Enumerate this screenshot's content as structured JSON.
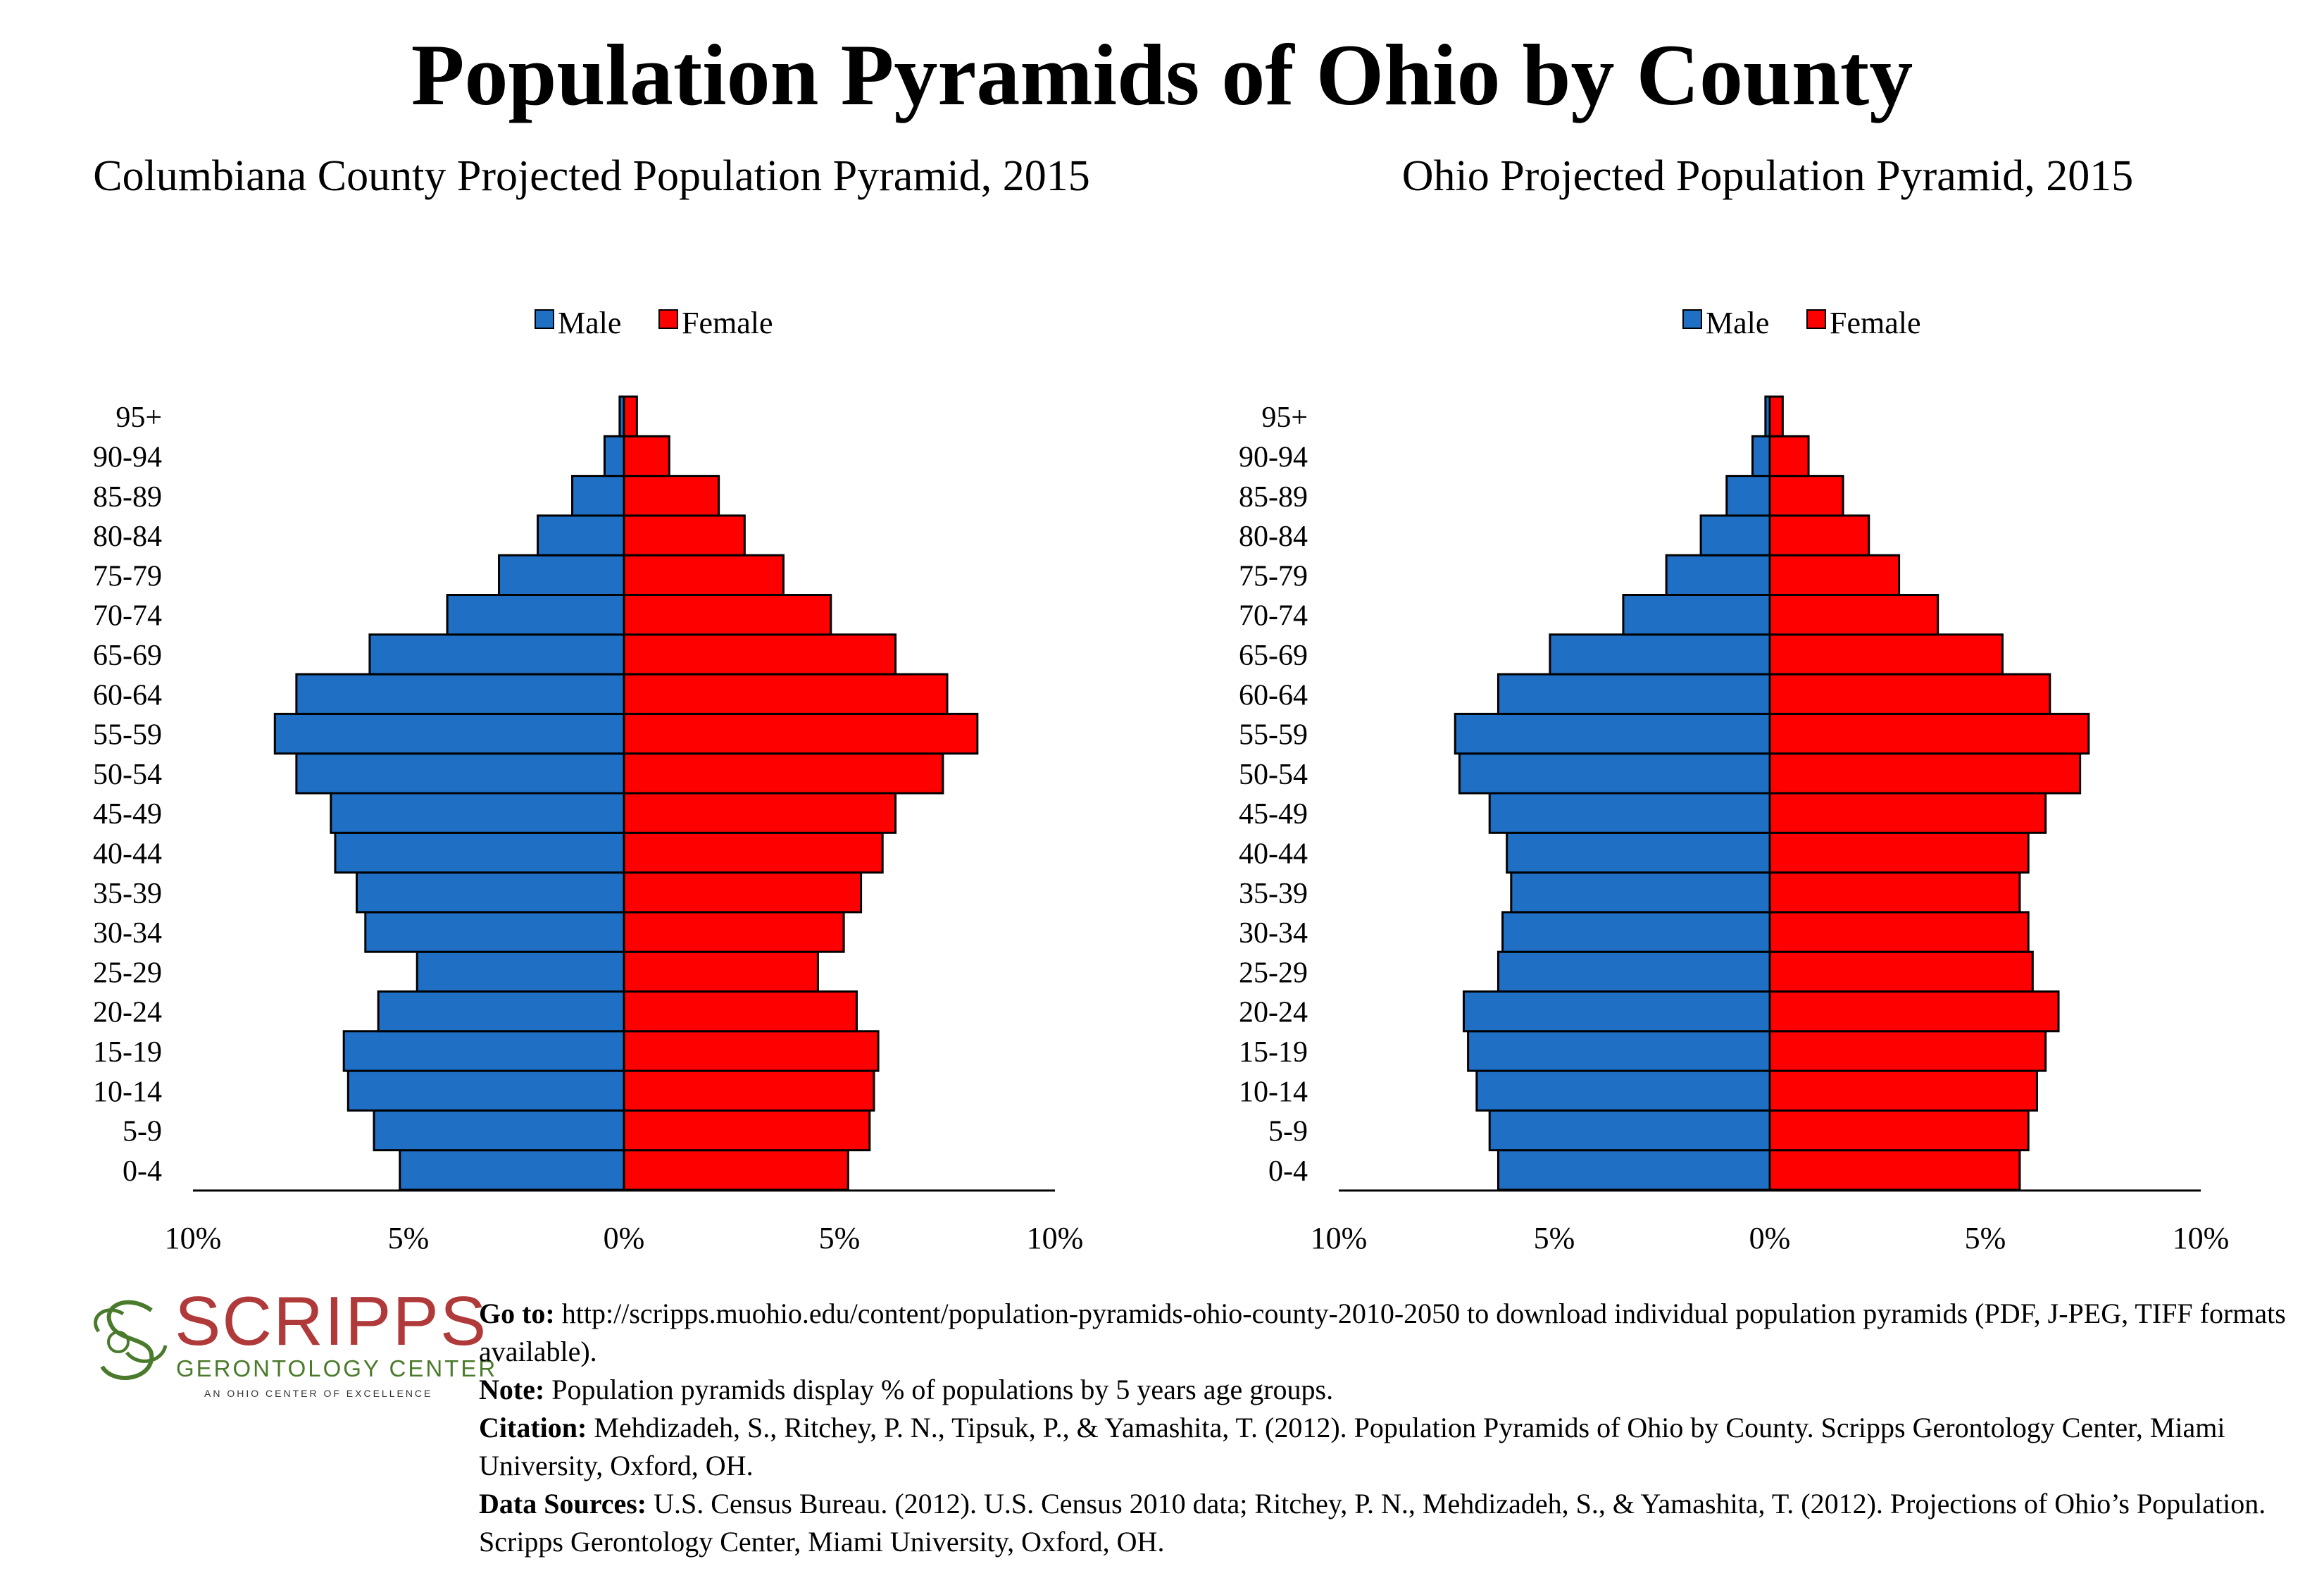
{
  "title": "Population Pyramids of Ohio by County",
  "chart_data": [
    {
      "type": "bar",
      "orientation": "horizontal-pyramid",
      "title": "Columbiana County Projected Population Pyramid, 2015",
      "categories": [
        "0-4",
        "5-9",
        "10-14",
        "15-19",
        "20-24",
        "25-29",
        "30-34",
        "35-39",
        "40-44",
        "45-49",
        "50-54",
        "55-59",
        "60-64",
        "65-69",
        "70-74",
        "75-79",
        "80-84",
        "85-89",
        "90-94",
        "95+"
      ],
      "series": [
        {
          "name": "Male",
          "color": "#1f6fc5",
          "values": [
            5.2,
            5.8,
            6.4,
            6.5,
            5.7,
            4.8,
            6.0,
            6.2,
            6.7,
            6.8,
            7.6,
            8.1,
            7.6,
            5.9,
            4.1,
            2.9,
            2.0,
            1.2,
            0.45,
            0.1
          ]
        },
        {
          "name": "Female",
          "color": "#ff0000",
          "values": [
            5.2,
            5.7,
            5.8,
            5.9,
            5.4,
            4.5,
            5.1,
            5.5,
            6.0,
            6.3,
            7.4,
            8.2,
            7.5,
            6.3,
            4.8,
            3.7,
            2.8,
            2.2,
            1.05,
            0.3
          ]
        }
      ],
      "xticks": [
        "10%",
        "5%",
        "0%",
        "5%",
        "10%"
      ],
      "xlim": [
        -10,
        10
      ],
      "legend": "top-center"
    },
    {
      "type": "bar",
      "orientation": "horizontal-pyramid",
      "title": "Ohio Projected Population Pyramid, 2015",
      "categories": [
        "0-4",
        "5-9",
        "10-14",
        "15-19",
        "20-24",
        "25-29",
        "30-34",
        "35-39",
        "40-44",
        "45-49",
        "50-54",
        "55-59",
        "60-64",
        "65-69",
        "70-74",
        "75-79",
        "80-84",
        "85-89",
        "90-94",
        "95+"
      ],
      "series": [
        {
          "name": "Male",
          "color": "#1f6fc5",
          "values": [
            6.3,
            6.5,
            6.8,
            7.0,
            7.1,
            6.3,
            6.2,
            6.0,
            6.1,
            6.5,
            7.2,
            7.3,
            6.3,
            5.1,
            3.4,
            2.4,
            1.6,
            1.0,
            0.4,
            0.1
          ]
        },
        {
          "name": "Female",
          "color": "#ff0000",
          "values": [
            5.8,
            6.0,
            6.2,
            6.4,
            6.7,
            6.1,
            6.0,
            5.8,
            6.0,
            6.4,
            7.2,
            7.4,
            6.5,
            5.4,
            3.9,
            3.0,
            2.3,
            1.7,
            0.9,
            0.3
          ]
        }
      ],
      "xticks": [
        "10%",
        "5%",
        "0%",
        "5%",
        "10%"
      ],
      "xlim": [
        -10,
        10
      ],
      "legend": "top-center"
    }
  ],
  "logo": {
    "name": "SCRIPPS",
    "subtitle": "GERONTOLOGY CENTER",
    "tagline": "AN OHIO CENTER OF EXCELLENCE"
  },
  "notes": {
    "goto_label": "Go to:",
    "goto_text": " http://scripps.muohio.edu/content/population-pyramids-ohio-county-2010-2050 to download individual population pyramids (PDF, J-PEG, TIFF formats available).",
    "note_label": "Note:",
    "note_text": " Population pyramids display % of populations by 5 years age groups.",
    "citation_label": "Citation:",
    "citation_text": " Mehdizadeh, S., Ritchey, P. N., Tipsuk, P., & Yamashita, T. (2012). Population Pyramids of Ohio by County. Scripps Gerontology Center, Miami University, Oxford, OH.",
    "sources_label": "Data Sources:",
    "sources_text": " U.S. Census Bureau. (2012). U.S. Census 2010 data; Ritchey, P. N., Mehdizadeh, S., & Yamashita, T. (2012). Projections of Ohio’s Population. Scripps Gerontology Center, Miami University, Oxford, OH."
  }
}
